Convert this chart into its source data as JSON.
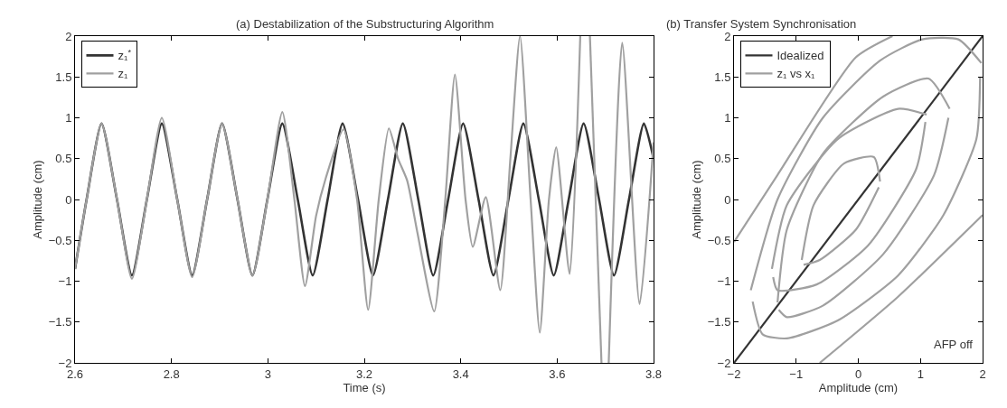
{
  "chart_data": [
    {
      "type": "line",
      "title": "(a) Destabilization of the Substructuring Algorithm",
      "xlabel": "Time (s)",
      "ylabel": "Amplitude (cm)",
      "xlim": [
        2.6,
        3.8
      ],
      "ylim": [
        -2,
        2
      ],
      "xticks": [
        2.6,
        2.8,
        3,
        3.2,
        3.4,
        3.6,
        3.8
      ],
      "yticks": [
        -2,
        -1.5,
        -1,
        -0.5,
        0,
        0.5,
        1,
        1.5,
        2
      ],
      "legend": "top left",
      "series": [
        {
          "name": "z₁$^{*}$",
          "color": "#333333",
          "x": [
            2.6,
            2.624,
            2.655,
            2.687,
            2.718,
            2.749,
            2.78,
            2.812,
            2.843,
            2.874,
            2.905,
            2.937,
            2.968,
            2.999,
            3.03,
            3.062,
            3.093,
            3.124,
            3.155,
            3.187,
            3.218,
            3.249,
            3.28,
            3.312,
            3.343,
            3.374,
            3.405,
            3.437,
            3.468,
            3.499,
            3.53,
            3.562,
            3.593,
            3.624,
            3.655,
            3.687,
            3.718,
            3.749,
            3.78,
            3.8
          ],
          "values": [
            -0.85,
            0,
            0.93,
            0,
            -0.93,
            0,
            0.93,
            0,
            -0.93,
            0,
            0.93,
            0,
            -0.93,
            0,
            0.93,
            0,
            -0.93,
            0,
            0.93,
            0,
            -0.93,
            0,
            0.93,
            0,
            -0.93,
            0,
            0.93,
            0,
            -0.93,
            0,
            0.93,
            0,
            -0.93,
            0,
            0.93,
            0,
            -0.93,
            0,
            0.93,
            0.5
          ]
        },
        {
          "name": "z₁",
          "color": "#a0a0a0",
          "x": [
            2.6,
            2.624,
            2.655,
            2.687,
            2.718,
            2.749,
            2.78,
            2.812,
            2.843,
            2.874,
            2.905,
            2.937,
            2.968,
            2.999,
            3.03,
            3.055,
            3.077,
            3.1,
            3.12,
            3.157,
            3.185,
            3.208,
            3.23,
            3.251,
            3.27,
            3.289,
            3.31,
            3.345,
            3.368,
            3.388,
            3.41,
            3.425,
            3.452,
            3.482,
            3.503,
            3.523,
            3.545,
            3.564,
            3.583,
            3.598,
            3.626,
            3.648,
            3.658,
            3.668,
            3.692,
            3.7,
            3.707,
            3.735,
            3.771,
            3.8
          ],
          "values": [
            -0.85,
            0,
            0.93,
            0,
            -0.97,
            0,
            1.0,
            0,
            -0.95,
            0,
            0.93,
            0,
            -0.93,
            0,
            1.07,
            0,
            -1.06,
            -0.2,
            0.26,
            0.86,
            0,
            -1.35,
            0,
            0.87,
            0.5,
            0.23,
            -0.4,
            -1.37,
            0,
            1.53,
            0,
            -0.58,
            0.03,
            -1.11,
            0.5,
            2.0,
            0,
            -1.63,
            0,
            0.64,
            -0.91,
            2.0,
            null,
            2.0,
            -2.0,
            null,
            -2.0,
            1.92,
            -1.28,
            0.7
          ]
        }
      ]
    },
    {
      "type": "line",
      "title": "(b) Transfer System Synchronisation",
      "xlabel": "Amplitude (cm)",
      "ylabel": "Amplitude (cm)",
      "xlim": [
        -2,
        2
      ],
      "ylim": [
        -2,
        2
      ],
      "xticks": [
        -2,
        -1,
        0,
        1,
        2
      ],
      "yticks": [
        -2,
        -1.5,
        -1,
        -0.5,
        0,
        0.5,
        1,
        1.5,
        2
      ],
      "legend": "top left",
      "annotations": [
        "AFP off"
      ],
      "series": [
        {
          "name": "Idealized",
          "color": "#333333",
          "x": [
            -2,
            2
          ],
          "values": [
            -2,
            2
          ]
        },
        {
          "name": "z₁ vs x₁",
          "color": "#a0a0a0",
          "x": [
            -1.73,
            -1.3,
            -0.57,
            0.35,
            1.03,
            1.61,
            1.98
          ],
          "values": [
            -1.11,
            0,
            1.0,
            1.7,
            1.96,
            1.96,
            1.67
          ]
        },
        {
          "color": "#a0a0a0",
          "x": [
            -1.7,
            -1.54,
            -1.15,
            -0.33,
            0.64,
            1.37,
            1.9,
            1.96
          ],
          "values": [
            -1.25,
            -1.65,
            -1.7,
            -1.48,
            -0.93,
            -0.19,
            0.74,
            1.5
          ]
        },
        {
          "color": "#a0a0a0",
          "x": [
            -1.3,
            -1.15,
            -0.57,
            0.4,
            1.13,
            1.47
          ],
          "values": [
            -1.26,
            -0.37,
            0.56,
            1.26,
            1.48,
            1.11
          ]
        },
        {
          "color": "#a0a0a0",
          "x": [
            -1.28,
            -1.15,
            -0.57,
            0.4,
            1.22,
            1.45
          ],
          "values": [
            -1.35,
            -1.44,
            -1.3,
            -0.67,
            0.3,
            1.0
          ]
        },
        {
          "color": "#a0a0a0",
          "x": [
            -1.39,
            -1.15,
            -0.33,
            0.64,
            1.1
          ],
          "values": [
            -0.85,
            -0.07,
            0.74,
            1.11,
            1.04
          ]
        },
        {
          "color": "#a0a0a0",
          "x": [
            -1.37,
            -1.3,
            -0.67,
            0.16,
            0.93,
            1.08
          ],
          "values": [
            -0.95,
            -1.11,
            -1.04,
            -0.56,
            0.37,
            0.95
          ]
        },
        {
          "color": "#a0a0a0",
          "x": [
            -0.91,
            -0.72,
            -0.23,
            0.25,
            0.35
          ],
          "values": [
            -0.74,
            -0.07,
            0.44,
            0.52,
            0.22
          ]
        },
        {
          "color": "#a0a0a0",
          "x": [
            -0.88,
            -0.62,
            -0.04,
            0.33
          ],
          "values": [
            -0.8,
            -0.74,
            -0.37,
            0.15
          ]
        },
        {
          "color": "#a0a0a0",
          "x": [
            -2,
            -1.3,
            -0.04,
            0.55
          ],
          "values": [
            -0.52,
            0.3,
            1.74,
            2.0
          ]
        },
        {
          "color": "#a0a0a0",
          "x": [
            -0.62,
            0.64,
            2
          ],
          "values": [
            -2,
            -1.19,
            -0.19
          ]
        }
      ]
    }
  ]
}
